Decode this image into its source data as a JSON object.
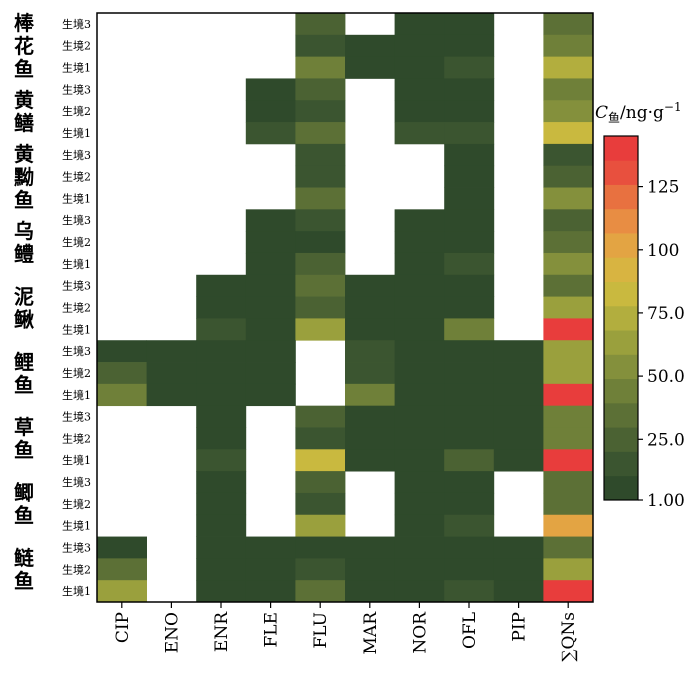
{
  "chart_data": {
    "type": "heatmap",
    "columns": [
      "CIP",
      "ENO",
      "ENR",
      "FLE",
      "FLU",
      "MAR",
      "NOR",
      "OFL",
      "PIP",
      "∑QNs"
    ],
    "species": [
      {
        "name": "棒花鱼",
        "rows": [
          "生境3",
          "生境2",
          "生境1"
        ]
      },
      {
        "name": "黄鳝",
        "rows": [
          "生境3",
          "生境2",
          "生境1"
        ]
      },
      {
        "name": "黄黝鱼",
        "rows": [
          "生境3",
          "生境2",
          "生境1"
        ]
      },
      {
        "name": "乌鳢",
        "rows": [
          "生境3",
          "生境2",
          "生境1"
        ]
      },
      {
        "name": "泥鳅",
        "rows": [
          "生境3",
          "生境2",
          "生境1"
        ]
      },
      {
        "name": "鲤鱼",
        "rows": [
          "生境3",
          "生境2",
          "生境1"
        ]
      },
      {
        "name": "草鱼",
        "rows": [
          "生境3",
          "生境2",
          "生境1"
        ]
      },
      {
        "name": "鲫鱼",
        "rows": [
          "生境3",
          "生境2",
          "生境1"
        ]
      },
      {
        "name": "鲢鱼",
        "rows": [
          "生境3",
          "生境2",
          "生境1"
        ]
      }
    ],
    "values": [
      [
        null,
        null,
        null,
        null,
        25,
        null,
        3,
        3,
        null,
        30
      ],
      [
        null,
        null,
        null,
        null,
        15,
        2,
        2,
        10,
        null,
        45
      ],
      [
        null,
        null,
        null,
        null,
        45,
        2,
        4,
        20,
        null,
        70
      ],
      [
        null,
        null,
        null,
        2,
        22,
        null,
        4,
        3,
        null,
        40
      ],
      [
        null,
        null,
        null,
        4,
        18,
        null,
        4,
        10,
        null,
        50
      ],
      [
        null,
        null,
        null,
        12,
        35,
        null,
        12,
        20,
        null,
        80
      ],
      [
        null,
        null,
        null,
        null,
        20,
        null,
        null,
        2,
        null,
        15
      ],
      [
        null,
        null,
        null,
        null,
        12,
        null,
        null,
        5,
        null,
        22
      ],
      [
        null,
        null,
        null,
        null,
        32,
        null,
        null,
        10,
        null,
        55
      ],
      [
        null,
        null,
        null,
        2,
        18,
        null,
        3,
        3,
        null,
        28
      ],
      [
        null,
        null,
        null,
        2,
        10,
        null,
        3,
        5,
        null,
        30
      ],
      [
        null,
        null,
        null,
        4,
        22,
        null,
        5,
        15,
        null,
        50
      ],
      [
        null,
        null,
        3,
        3,
        30,
        3,
        3,
        3,
        null,
        38
      ],
      [
        null,
        null,
        3,
        5,
        28,
        3,
        3,
        10,
        null,
        60
      ],
      [
        null,
        null,
        15,
        10,
        68,
        3,
        5,
        40,
        null,
        145
      ],
      [
        8,
        2,
        2,
        2,
        null,
        20,
        3,
        3,
        3,
        60
      ],
      [
        28,
        2,
        2,
        2,
        null,
        12,
        3,
        3,
        5,
        68
      ],
      [
        45,
        2,
        8,
        2,
        null,
        40,
        3,
        3,
        5,
        140
      ],
      [
        null,
        null,
        3,
        null,
        25,
        3,
        3,
        3,
        3,
        40
      ],
      [
        null,
        null,
        3,
        null,
        15,
        3,
        3,
        10,
        3,
        45
      ],
      [
        null,
        null,
        20,
        null,
        85,
        5,
        5,
        25,
        3,
        145
      ],
      [
        null,
        null,
        3,
        null,
        25,
        null,
        3,
        3,
        null,
        35
      ],
      [
        null,
        null,
        3,
        null,
        18,
        null,
        3,
        10,
        null,
        35
      ],
      [
        null,
        null,
        10,
        null,
        65,
        null,
        3,
        20,
        null,
        100
      ],
      [
        5,
        null,
        3,
        3,
        8,
        5,
        3,
        3,
        3,
        30
      ],
      [
        35,
        null,
        3,
        3,
        15,
        5,
        3,
        8,
        5,
        65
      ],
      [
        65,
        null,
        10,
        10,
        35,
        10,
        5,
        20,
        5,
        145
      ]
    ],
    "colorbar": {
      "title_main": "C",
      "title_sub": "鱼",
      "title_unit": "/ng·g",
      "title_exp": "−1",
      "ticks": [
        1.0,
        25.0,
        50.0,
        75.0,
        100,
        125
      ],
      "tick_labels": [
        "1.00",
        "25.0",
        "50.0",
        "75.0",
        "100",
        "125"
      ],
      "range": [
        1.0,
        145
      ]
    },
    "palette": [
      "#2f4a2b",
      "#3b5530",
      "#4b6233",
      "#5c7036",
      "#6f8039",
      "#84903c",
      "#9aa03d",
      "#b2ae3e",
      "#c9b93f",
      "#d8b441",
      "#e3a443",
      "#e88d43",
      "#e87140",
      "#e8503e",
      "#e83d3c"
    ]
  }
}
